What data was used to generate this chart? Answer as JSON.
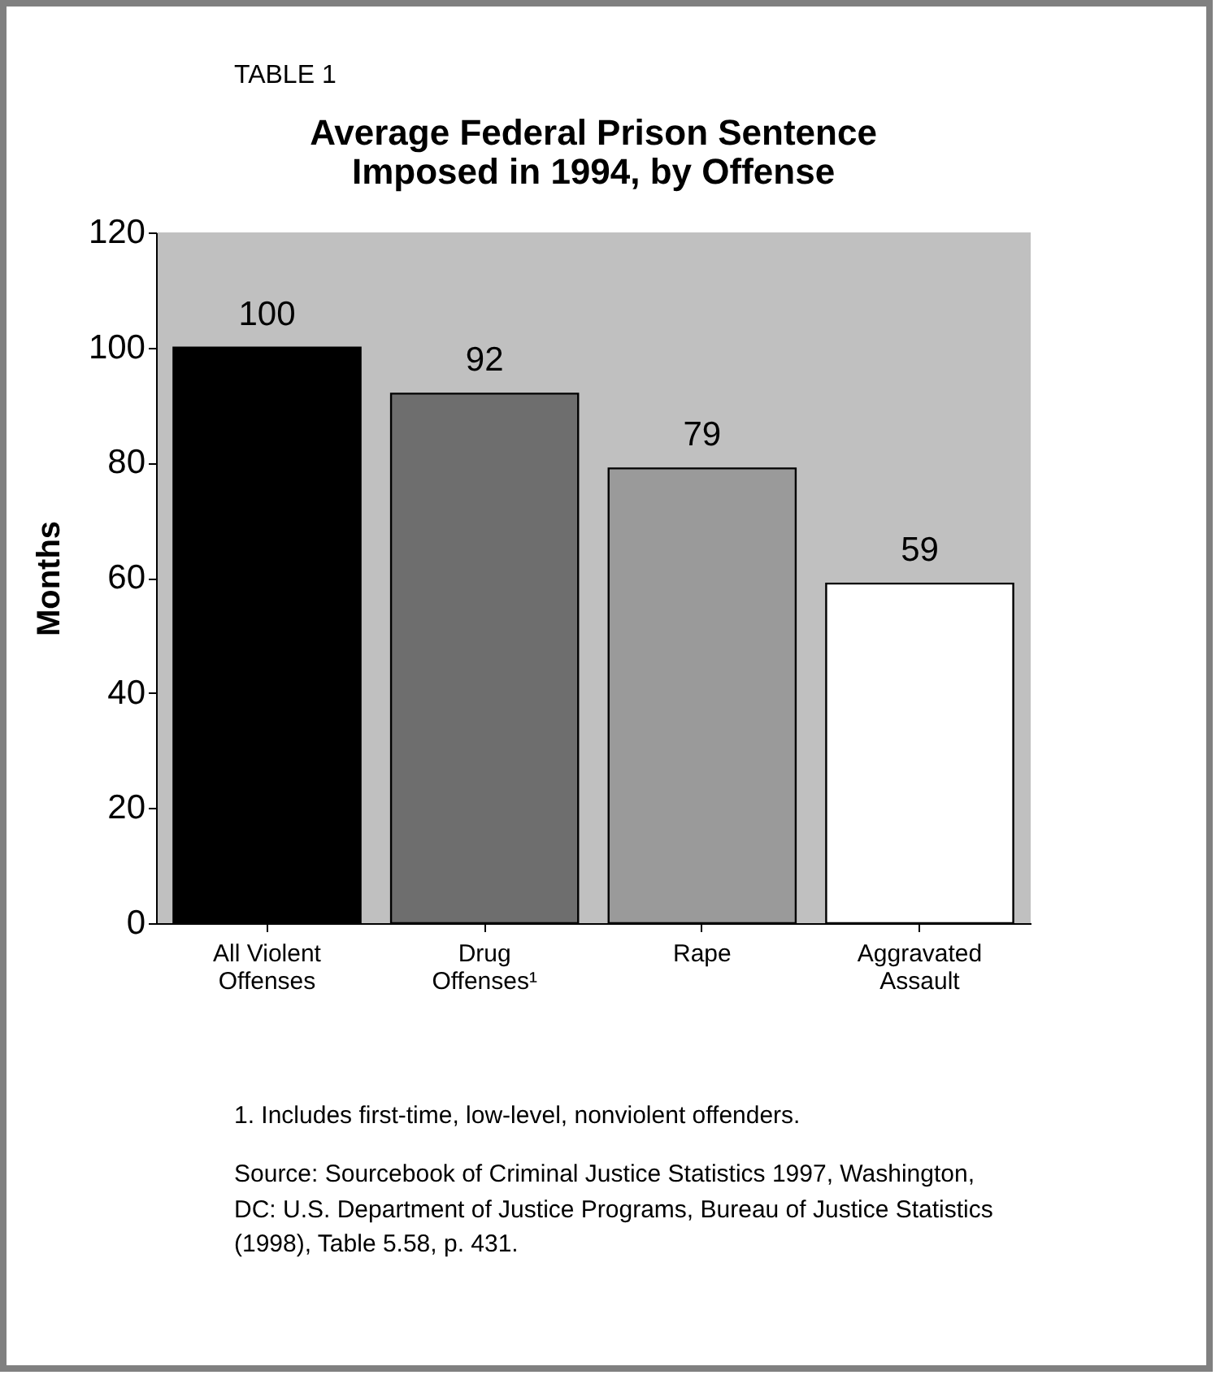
{
  "chart_data": {
    "type": "bar",
    "title": "Average Federal Prison Sentence\nImposed in 1994, by Offense",
    "ylabel": "Months",
    "categories": [
      "All Violent Offenses",
      "Drug Offenses¹",
      "Rape",
      "Aggravated Assault"
    ],
    "values": [
      100,
      92,
      79,
      59
    ],
    "colors": [
      "#000000",
      "#6e6e6e",
      "#9a9a9a",
      "#ffffff"
    ],
    "ylim": [
      0,
      120
    ],
    "yticks": [
      0,
      20,
      40,
      60,
      80,
      100,
      120
    ],
    "grid": false,
    "data_labels": true,
    "legend": false,
    "annotations": [
      "TABLE 1",
      "1. Includes first-time, low-level, nonviolent offenders.",
      "Source: Sourcebook of Criminal Justice Statistics 1997, Washington, DC: U.S. Department of Justice Programs, Bureau of Justice Statistics (1998), Table 5.58, p. 431."
    ]
  }
}
